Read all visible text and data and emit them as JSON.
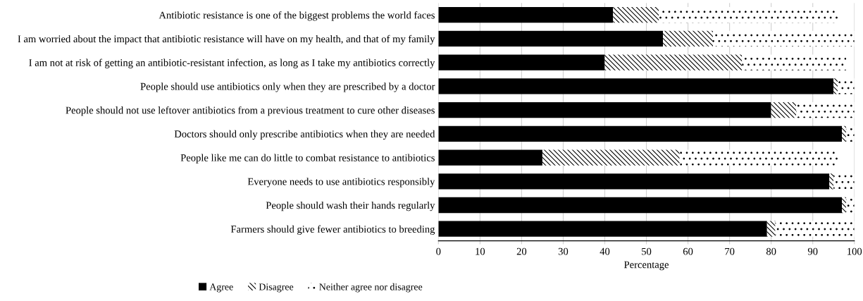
{
  "chart_data": {
    "type": "bar",
    "orientation": "horizontal",
    "stacked": true,
    "categories": [
      "Antibiotic resistance is one of the biggest problems the world faces",
      "I am worried about the impact that antibiotic resistance will have on my health, and that of my family",
      "I am not at risk of getting an antibiotic-resistant infection, as long as I take my antibiotics correctly",
      "People should use antibiotics only when they are prescribed by a doctor",
      "People should not use leftover antibiotics from a previous treatment to cure other diseases",
      "Doctors should only prescribe antibiotics when they are needed",
      "People like me can do little to combat resistance to antibiotics",
      "Everyone needs to use antibiotics responsibly",
      "People should wash their hands regularly",
      "Farmers should give fewer antibiotics to breeding"
    ],
    "series": [
      {
        "name": "Agree",
        "color": "#000000",
        "values": [
          42,
          54,
          40,
          95,
          80,
          97,
          25,
          94,
          97,
          79
        ]
      },
      {
        "name": "Disagree",
        "color": "#ffffff",
        "values": [
          11,
          12,
          33,
          1,
          6,
          1,
          33,
          1,
          1,
          2
        ]
      },
      {
        "name": "Neither agree nor disagree",
        "color": "#ffffff",
        "values": [
          43,
          34,
          25,
          4,
          14,
          2,
          38,
          5,
          2,
          19
        ]
      }
    ],
    "xlabel": "Percentage",
    "xlim": [
      0,
      100
    ],
    "xticks": [
      0,
      10,
      20,
      30,
      40,
      50,
      60,
      70,
      80,
      90,
      100
    ],
    "grid": "x",
    "legend": "bottom left"
  }
}
